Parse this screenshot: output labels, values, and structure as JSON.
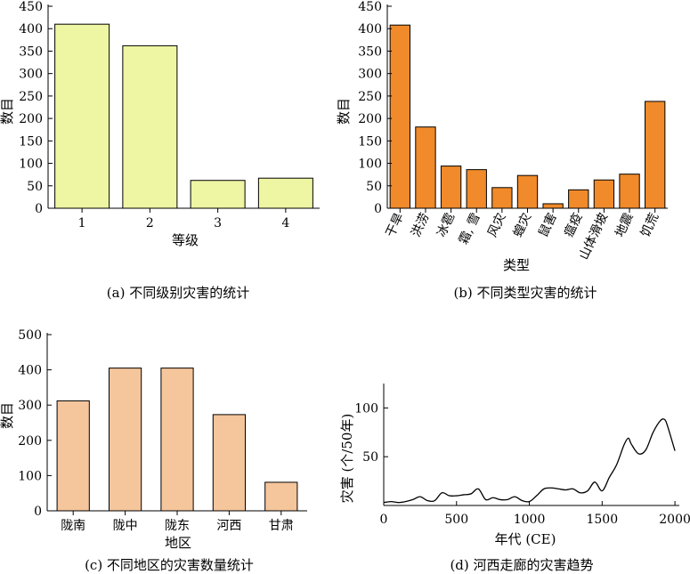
{
  "chart_data": [
    {
      "type": "bar",
      "caption": "(a) 不同级别灾害的统计",
      "xlabel": "等级",
      "ylabel": "数目",
      "categories": [
        "1",
        "2",
        "3",
        "4"
      ],
      "values": [
        410,
        362,
        62,
        67
      ],
      "ylim": [
        0,
        450
      ],
      "yticks": [
        0,
        50,
        100,
        150,
        200,
        250,
        300,
        350,
        400,
        450
      ],
      "color": "#eef5a3",
      "grid": false
    },
    {
      "type": "bar",
      "caption": "(b) 不同类型灾害的统计",
      "xlabel": "类型",
      "ylabel": "数目",
      "categories": [
        "干旱",
        "洪涝",
        "冰雹",
        "霜, 雪",
        "风灾",
        "蝗灾",
        "鼠害",
        "瘟疫",
        "山体滑坡",
        "地震",
        "饥荒"
      ],
      "values": [
        408,
        181,
        94,
        86,
        46,
        73,
        10,
        41,
        63,
        76,
        238
      ],
      "ylim": [
        0,
        450
      ],
      "yticks": [
        0,
        50,
        100,
        150,
        200,
        250,
        300,
        350,
        400,
        450
      ],
      "color": "#f08a2a",
      "grid": false
    },
    {
      "type": "bar",
      "caption": "(c) 不同地区的灾害数量统计",
      "xlabel": "地区",
      "ylabel": "数目",
      "categories": [
        "陇南",
        "陇中",
        "陇东",
        "河西",
        "甘肃"
      ],
      "values": [
        312,
        405,
        405,
        273,
        81
      ],
      "ylim": [
        0,
        500
      ],
      "yticks": [
        0,
        100,
        200,
        300,
        400,
        500
      ],
      "color": "#f5c59c",
      "grid": false
    },
    {
      "type": "line",
      "caption": "(d) 河西走廊的灾害趋势",
      "xlabel": "年代 (CE)",
      "ylabel": "灾害 (个/50年)",
      "x": [
        0,
        50,
        100,
        150,
        200,
        250,
        300,
        350,
        400,
        450,
        500,
        550,
        600,
        650,
        700,
        750,
        800,
        850,
        900,
        950,
        1000,
        1050,
        1100,
        1150,
        1200,
        1250,
        1300,
        1350,
        1400,
        1450,
        1500,
        1550,
        1600,
        1650,
        1680,
        1700,
        1750,
        1800,
        1850,
        1900,
        1930,
        1950,
        2000
      ],
      "y": [
        3,
        4,
        3,
        4,
        6,
        9,
        5,
        5,
        13,
        10,
        10,
        11,
        12,
        17,
        6,
        8,
        6,
        6,
        9,
        5,
        4,
        10,
        17,
        18,
        17,
        16,
        17,
        13,
        15,
        24,
        15,
        29,
        42,
        62,
        69,
        63,
        53,
        57,
        75,
        87,
        88,
        81,
        56
      ],
      "xlim": [
        0,
        2030
      ],
      "ylim": [
        0,
        125
      ],
      "xticks": [
        0,
        500,
        1000,
        1500,
        2000
      ],
      "yticks": [
        50,
        100
      ],
      "color": "#000000",
      "grid": false
    }
  ]
}
